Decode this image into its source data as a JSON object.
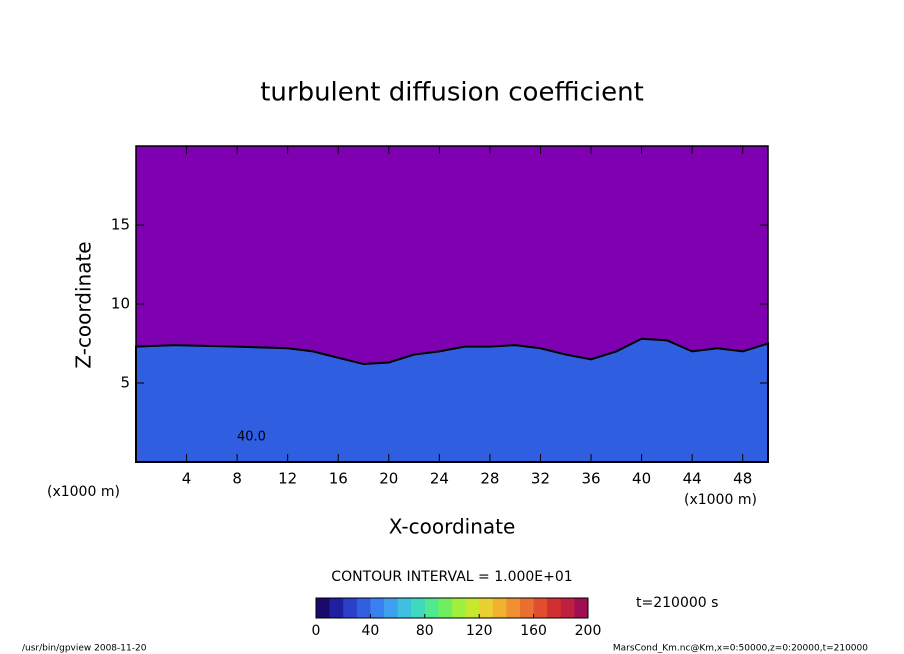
{
  "chart_data": {
    "type": "contour",
    "title": "turbulent diffusion coefficient",
    "xlabel": "X-coordinate",
    "ylabel": "Z-coordinate",
    "xunit": "(x1000 m)",
    "xlim": [
      0,
      50
    ],
    "ylim": [
      0,
      20
    ],
    "xticks": [
      4,
      8,
      12,
      16,
      20,
      24,
      28,
      32,
      36,
      40,
      44,
      48
    ],
    "yticks": [
      5,
      10,
      15
    ],
    "background_color": "#7f00b0",
    "field_color": "#2f5ee0",
    "field_top": {
      "x": [
        0,
        3,
        8,
        12,
        14,
        16,
        18,
        20,
        22,
        24,
        26,
        28,
        30,
        32,
        34,
        36,
        38,
        40,
        42,
        44,
        46,
        48,
        50
      ],
      "z": [
        7.3,
        7.4,
        7.3,
        7.2,
        7.0,
        6.6,
        6.2,
        6.3,
        6.8,
        7.0,
        7.3,
        7.3,
        7.4,
        7.2,
        6.8,
        6.5,
        7.0,
        7.8,
        7.7,
        7.0,
        7.2,
        7.0,
        7.5
      ]
    },
    "contour_label": "40.0",
    "contour_interval": "CONTOUR INTERVAL = 1.000E+01",
    "clim": [
      0,
      200
    ],
    "colorbar_ticks": [
      0,
      40,
      80,
      120,
      160,
      200
    ],
    "colorbar_colors": [
      "#1a0a6a",
      "#1f1fa0",
      "#2a40c8",
      "#3060e0",
      "#3a80f0",
      "#40a0f0",
      "#40c0e0",
      "#40d8c0",
      "#50e890",
      "#70f060",
      "#a0f040",
      "#c8e830",
      "#e8d030",
      "#f0b030",
      "#f09030",
      "#e87030",
      "#e05030",
      "#d03030",
      "#c02040",
      "#a01050"
    ],
    "time_label": "t=210000 s",
    "footer_left": "/usr/bin/gpview   2008-11-20",
    "footer_right": "MarsCond_Km.nc@Km,x=0:50000,z=0:20000,t=210000"
  }
}
